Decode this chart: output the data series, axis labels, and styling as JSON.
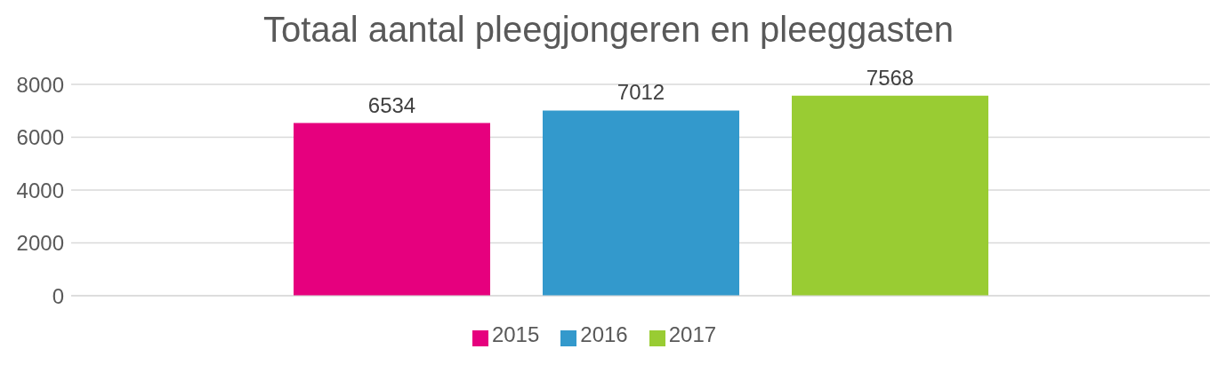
{
  "chart_data": {
    "type": "bar",
    "title": "Totaal aantal pleegjongeren en pleeggasten",
    "categories": [
      null
    ],
    "series": [
      {
        "name": "2015",
        "color": "#e6007e",
        "values": [
          6534
        ]
      },
      {
        "name": "2016",
        "color": "#3399cc",
        "values": [
          7012
        ]
      },
      {
        "name": "2017",
        "color": "#99cc33",
        "values": [
          7568
        ]
      }
    ],
    "ylim": [
      0,
      8000
    ],
    "yticks": [
      0,
      2000,
      4000,
      6000,
      8000
    ],
    "grid": "y",
    "legend": "bottom",
    "data_labels": true
  }
}
